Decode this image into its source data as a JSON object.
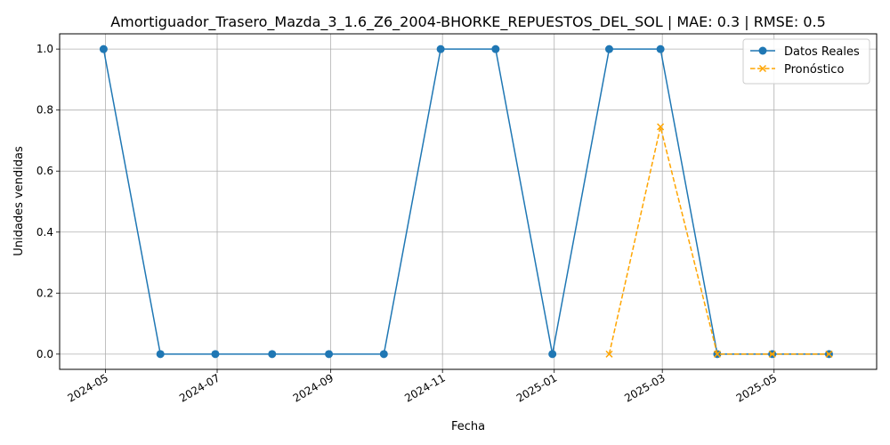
{
  "chart_data": {
    "type": "line",
    "title": "Amortiguador_Trasero_Mazda_3_1.6_Z6_2004-BHORKE_REPUESTOS_DEL_SOL | MAE: 0.3 | RMSE: 0.5",
    "xlabel": "Fecha",
    "ylabel": "Unidades vendidas",
    "x_axis": "date",
    "xlim": [
      "2024-04-06",
      "2025-06-26"
    ],
    "ylim": [
      -0.05,
      1.05
    ],
    "grid": true,
    "legend_position": "top-right",
    "x_ticks": [
      {
        "date": "2024-05-01",
        "label": "2024-05"
      },
      {
        "date": "2024-07-01",
        "label": "2024-07"
      },
      {
        "date": "2024-09-01",
        "label": "2024-09"
      },
      {
        "date": "2024-11-01",
        "label": "2024-11"
      },
      {
        "date": "2025-01-01",
        "label": "2025-01"
      },
      {
        "date": "2025-03-01",
        "label": "2025-03"
      },
      {
        "date": "2025-05-01",
        "label": "2025-05"
      }
    ],
    "y_ticks": [
      {
        "value": 0.0,
        "label": "0.0"
      },
      {
        "value": 0.2,
        "label": "0.2"
      },
      {
        "value": 0.4,
        "label": "0.4"
      },
      {
        "value": 0.6,
        "label": "0.6"
      },
      {
        "value": 0.8,
        "label": "0.8"
      },
      {
        "value": 1.0,
        "label": "1.0"
      }
    ],
    "series": [
      {
        "name": "Datos Reales",
        "color": "#1f77b4",
        "line_style": "solid",
        "marker": "circle",
        "x": [
          "2024-04-30",
          "2024-05-31",
          "2024-06-30",
          "2024-07-31",
          "2024-08-31",
          "2024-09-30",
          "2024-10-31",
          "2024-11-30",
          "2024-12-31",
          "2025-01-31",
          "2025-02-28",
          "2025-03-31",
          "2025-04-30",
          "2025-05-31"
        ],
        "values": [
          1,
          0,
          0,
          0,
          0,
          0,
          1,
          1,
          0,
          1,
          1,
          0,
          0,
          0
        ]
      },
      {
        "name": "Pronóstico",
        "color": "#ffa500",
        "line_style": "dashed",
        "marker": "x",
        "x": [
          "2025-01-31",
          "2025-02-28",
          "2025-03-31",
          "2025-04-30",
          "2025-05-31"
        ],
        "values": [
          0.0,
          0.745,
          0.0,
          0.0,
          0.0
        ]
      }
    ]
  }
}
